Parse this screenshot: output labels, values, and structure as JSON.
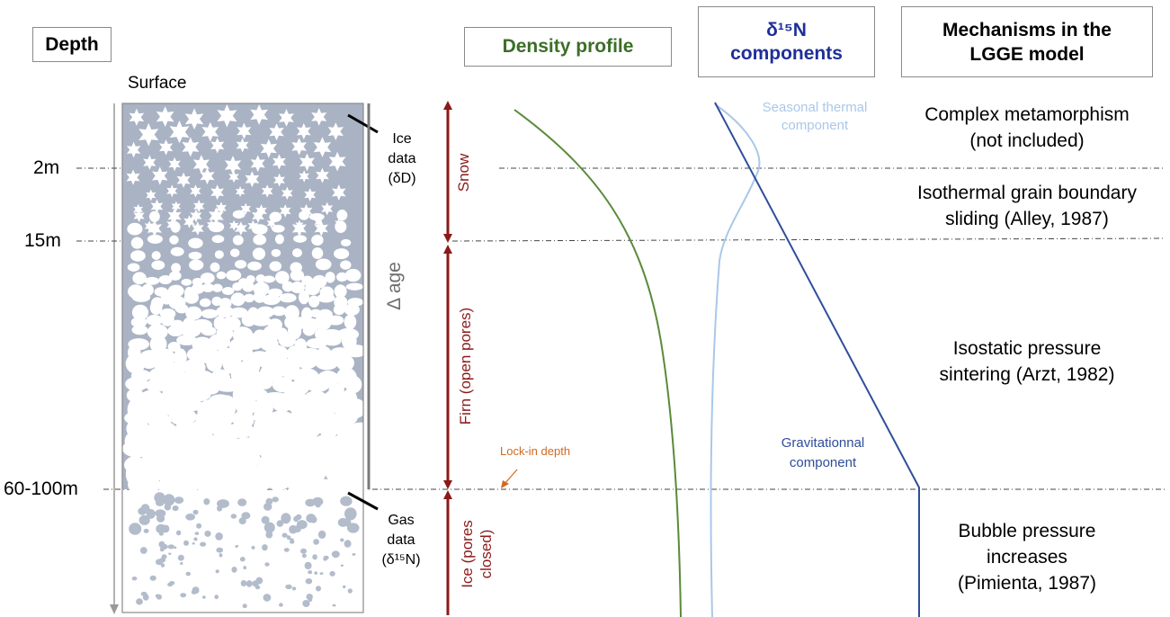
{
  "headers": {
    "depth": "Depth",
    "density": "Density profile",
    "d15n_line1": "δ¹⁵N",
    "d15n_line2": "components",
    "mech_line1": "Mechanisms in the",
    "mech_line2": "LGGE model"
  },
  "colors": {
    "density_header": "#3c6e27",
    "d15n_header": "#1f2f9a",
    "zone_red": "#8b1a1a",
    "density_curve": "#5a8a3a",
    "seasonal": "#a9c8e8",
    "gravitational": "#2f4d9a",
    "lock_in": "#d2691e",
    "column_fill": "#a9b3c4"
  },
  "depth": {
    "surface": "Surface",
    "ticks": [
      "2m",
      "15m",
      "60-100m"
    ]
  },
  "column": {
    "ice_label": [
      "Ice",
      "data",
      "(δD)"
    ],
    "gas_label": [
      "Gas",
      "data",
      "(δ¹⁵N)"
    ],
    "delta_age": "Δ age"
  },
  "zones": {
    "snow": "Snow",
    "firn": "Firn (open pores)",
    "ice_line1": "Ice (pores",
    "ice_line2": "closed)",
    "lock_in": "Lock-in depth"
  },
  "d15n": {
    "seasonal_line1": "Seasonal thermal",
    "seasonal_line2": "component",
    "grav_line1": "Gravitationnal",
    "grav_line2": "component"
  },
  "mechanisms": [
    {
      "line1": "Complex metamorphism",
      "line2": "(not included)"
    },
    {
      "line1": "Isothermal grain boundary",
      "line2": "sliding (Alley, 1987)"
    },
    {
      "line1": "Isostatic pressure",
      "line2": "sintering (Arzt, 1982)"
    },
    {
      "line1": "Bubble pressure",
      "line2": "increases",
      "line3": "(Pimienta, 1987)"
    }
  ]
}
